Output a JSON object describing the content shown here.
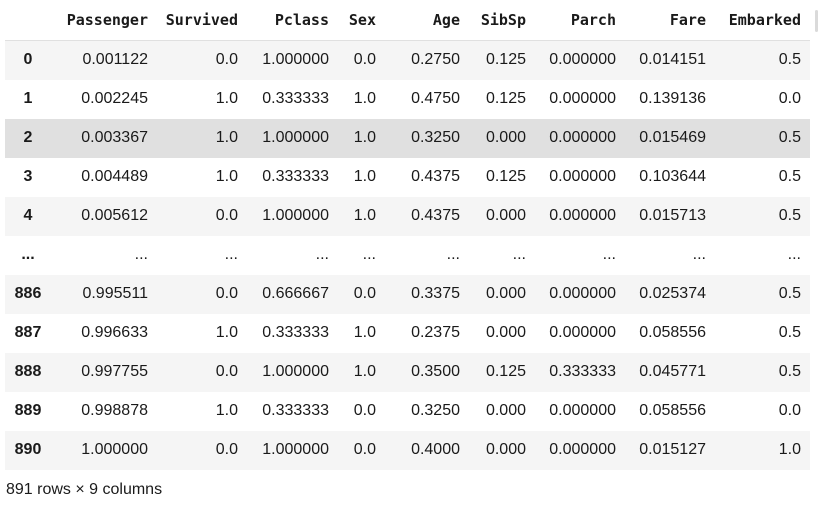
{
  "dataframe": {
    "columns": [
      "Passenger",
      "Survived",
      "Pclass",
      "Sex",
      "Age",
      "SibSp",
      "Parch",
      "Fare",
      "Embarked"
    ],
    "rows": [
      {
        "index": "0",
        "cells": [
          "0.001122",
          "0.0",
          "1.000000",
          "0.0",
          "0.2750",
          "0.125",
          "0.000000",
          "0.014151",
          "0.5"
        ]
      },
      {
        "index": "1",
        "cells": [
          "0.002245",
          "1.0",
          "0.333333",
          "1.0",
          "0.4750",
          "0.125",
          "0.000000",
          "0.139136",
          "0.0"
        ]
      },
      {
        "index": "2",
        "cells": [
          "0.003367",
          "1.0",
          "1.000000",
          "1.0",
          "0.3250",
          "0.000",
          "0.000000",
          "0.015469",
          "0.5"
        ]
      },
      {
        "index": "3",
        "cells": [
          "0.004489",
          "1.0",
          "0.333333",
          "1.0",
          "0.4375",
          "0.125",
          "0.000000",
          "0.103644",
          "0.5"
        ]
      },
      {
        "index": "4",
        "cells": [
          "0.005612",
          "0.0",
          "1.000000",
          "1.0",
          "0.4375",
          "0.000",
          "0.000000",
          "0.015713",
          "0.5"
        ]
      },
      {
        "index": "...",
        "cells": [
          "...",
          "...",
          "...",
          "...",
          "...",
          "...",
          "...",
          "...",
          "..."
        ]
      },
      {
        "index": "886",
        "cells": [
          "0.995511",
          "0.0",
          "0.666667",
          "0.0",
          "0.3375",
          "0.000",
          "0.000000",
          "0.025374",
          "0.5"
        ]
      },
      {
        "index": "887",
        "cells": [
          "0.996633",
          "1.0",
          "0.333333",
          "1.0",
          "0.2375",
          "0.000",
          "0.000000",
          "0.058556",
          "0.5"
        ]
      },
      {
        "index": "888",
        "cells": [
          "0.997755",
          "0.0",
          "1.000000",
          "1.0",
          "0.3500",
          "0.125",
          "0.333333",
          "0.045771",
          "0.5"
        ]
      },
      {
        "index": "889",
        "cells": [
          "0.998878",
          "1.0",
          "0.333333",
          "0.0",
          "0.3250",
          "0.000",
          "0.000000",
          "0.058556",
          "0.0"
        ]
      },
      {
        "index": "890",
        "cells": [
          "1.000000",
          "0.0",
          "1.000000",
          "0.0",
          "0.4000",
          "0.000",
          "0.000000",
          "0.015127",
          "1.0"
        ]
      }
    ],
    "hovered_row": "2",
    "shape_caption": "891 rows × 9 columns"
  },
  "colors": {
    "stripe": "#f5f5f5",
    "hover": "#e0e0e0",
    "text": "#1a1a1a",
    "header_border": "#e0e0e0"
  }
}
